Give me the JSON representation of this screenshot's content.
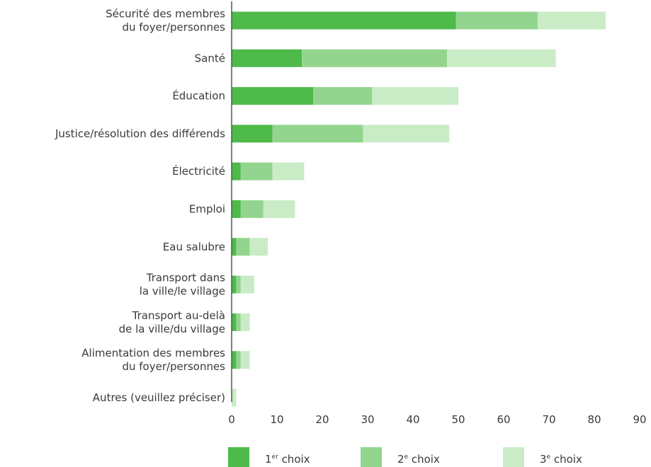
{
  "chart_data": {
    "type": "bar",
    "orientation": "horizontal",
    "stacked": true,
    "categories": [
      [
        "Sécurité des membres",
        "du foyer/personnes"
      ],
      [
        "Santé"
      ],
      [
        "Éducation"
      ],
      [
        "Justice/résolution des différends"
      ],
      [
        "Électricité"
      ],
      [
        "Emploi"
      ],
      [
        "Eau salubre"
      ],
      [
        "Transport dans",
        "la ville/le village"
      ],
      [
        "Transport au-delà",
        "de la ville/du village"
      ],
      [
        "Alimentation des membres",
        "du foyer/personnes"
      ],
      [
        "Autres (veuillez préciser)"
      ]
    ],
    "series": [
      {
        "name": "1er choix",
        "base": "1",
        "sup": "er",
        "suffix": " choix",
        "color": "#4dba4a",
        "values": [
          49.5,
          15.5,
          18,
          9,
          2,
          2,
          1,
          1,
          1,
          1,
          0
        ]
      },
      {
        "name": "2e choix",
        "base": "2",
        "sup": "e",
        "suffix": " choix",
        "color": "#93d58f",
        "values": [
          18,
          32,
          13,
          20,
          7,
          5,
          3,
          1,
          1,
          1,
          0
        ]
      },
      {
        "name": "3e choix",
        "base": "3",
        "sup": "e",
        "suffix": " choix",
        "color": "#c9ecc6",
        "values": [
          15,
          24,
          19,
          19,
          7,
          7,
          4,
          3,
          2,
          2,
          1
        ]
      }
    ],
    "xlim": [
      0,
      90
    ],
    "xticks": [
      0,
      10,
      20,
      30,
      40,
      50,
      60,
      70,
      80,
      90
    ],
    "grid": false,
    "legend_position": "bottom"
  }
}
